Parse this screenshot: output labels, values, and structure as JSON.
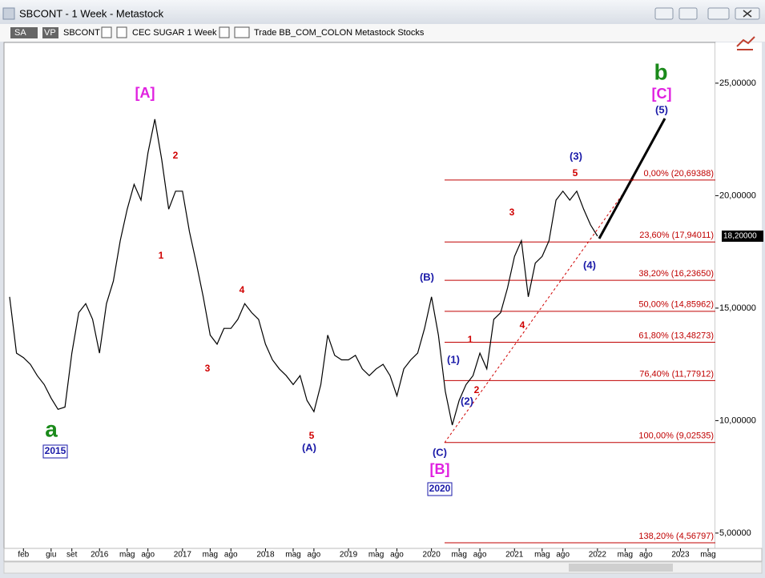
{
  "window": {
    "title": "SBCONT - 1 Week - Metastock",
    "toolbar": [
      "SA",
      "VP",
      "SBCONT",
      "CEC SUGAR  1 Week",
      "Trade  BB_COM_COLON  Metastock  Stocks"
    ]
  },
  "chart_data": {
    "type": "line",
    "color": "#000000",
    "x": [
      "2014-12",
      "2015-01",
      "2015-02",
      "2015-03",
      "2015-04",
      "2015-05",
      "2015-06",
      "2015-07",
      "2015-08",
      "2015-09",
      "2015-10",
      "2015-11",
      "2015-12",
      "2016-01",
      "2016-02",
      "2016-03",
      "2016-04",
      "2016-05",
      "2016-06",
      "2016-07",
      "2016-08",
      "2016-09",
      "2016-10",
      "2016-11",
      "2016-12",
      "2017-01",
      "2017-02",
      "2017-03",
      "2017-04",
      "2017-05",
      "2017-06",
      "2017-07",
      "2017-08",
      "2017-09",
      "2017-10",
      "2017-11",
      "2017-12",
      "2018-01",
      "2018-02",
      "2018-03",
      "2018-04",
      "2018-05",
      "2018-06",
      "2018-07",
      "2018-08",
      "2018-09",
      "2018-10",
      "2018-11",
      "2018-12",
      "2019-01",
      "2019-02",
      "2019-03",
      "2019-04",
      "2019-05",
      "2019-06",
      "2019-07",
      "2019-08",
      "2019-09",
      "2019-10",
      "2019-11",
      "2019-12",
      "2020-01",
      "2020-02",
      "2020-03",
      "2020-04",
      "2020-05",
      "2020-06",
      "2020-07",
      "2020-08",
      "2020-09",
      "2020-10",
      "2020-11",
      "2020-12",
      "2021-01",
      "2021-02",
      "2021-03",
      "2021-04",
      "2021-05",
      "2021-06",
      "2021-07",
      "2021-08",
      "2021-09",
      "2021-10",
      "2021-11",
      "2021-12",
      "2022-01"
    ],
    "values": [
      15.5,
      13.0,
      12.8,
      12.5,
      12.0,
      11.6,
      11.0,
      10.5,
      10.6,
      13.0,
      14.8,
      15.2,
      14.5,
      13.0,
      15.2,
      16.2,
      18.0,
      19.4,
      20.5,
      19.8,
      21.9,
      23.4,
      21.6,
      19.4,
      20.2,
      20.2,
      18.4,
      17.0,
      15.5,
      13.8,
      13.4,
      14.1,
      14.1,
      14.5,
      15.2,
      14.8,
      14.5,
      13.4,
      12.7,
      12.3,
      12.0,
      11.6,
      12.0,
      10.9,
      10.4,
      11.6,
      13.8,
      12.9,
      12.7,
      12.7,
      12.9,
      12.3,
      12.0,
      12.3,
      12.5,
      12.0,
      11.1,
      12.3,
      12.7,
      13.0,
      14.1,
      15.5,
      13.8,
      11.3,
      9.8,
      10.9,
      11.6,
      12.0,
      13.0,
      12.3,
      14.5,
      14.8,
      15.9,
      17.3,
      18.0,
      15.5,
      17.0,
      17.3,
      18.0,
      19.8,
      20.2,
      19.8,
      20.2,
      19.4,
      18.7,
      18.2
    ],
    "xlim": [
      "2014-12",
      "2023-05"
    ],
    "xticks": [
      {
        "value": "2015-02",
        "label": "feb"
      },
      {
        "value": "2015-06",
        "label": "giu"
      },
      {
        "value": "2015-09",
        "label": "set"
      },
      {
        "value": "2016-01",
        "label": "2016"
      },
      {
        "value": "2016-05",
        "label": "mag"
      },
      {
        "value": "2016-08",
        "label": "ago"
      },
      {
        "value": "2017-01",
        "label": "2017"
      },
      {
        "value": "2017-05",
        "label": "mag"
      },
      {
        "value": "2017-08",
        "label": "ago"
      },
      {
        "value": "2018-01",
        "label": "2018"
      },
      {
        "value": "2018-05",
        "label": "mag"
      },
      {
        "value": "2018-08",
        "label": "ago"
      },
      {
        "value": "2019-01",
        "label": "2019"
      },
      {
        "value": "2019-05",
        "label": "mag"
      },
      {
        "value": "2019-08",
        "label": "ago"
      },
      {
        "value": "2020-01",
        "label": "2020"
      },
      {
        "value": "2020-05",
        "label": "mag"
      },
      {
        "value": "2020-08",
        "label": "ago"
      },
      {
        "value": "2021-01",
        "label": "2021"
      },
      {
        "value": "2021-05",
        "label": "mag"
      },
      {
        "value": "2021-08",
        "label": "ago"
      },
      {
        "value": "2022-01",
        "label": "2022"
      },
      {
        "value": "2022-05",
        "label": "mag"
      },
      {
        "value": "2022-08",
        "label": "ago"
      },
      {
        "value": "2023-01",
        "label": "2023"
      },
      {
        "value": "2023-05",
        "label": "mag"
      }
    ],
    "ylim": [
      4.32,
      26.74
    ],
    "yticks": [
      {
        "value": 5,
        "label": "5,00000"
      },
      {
        "value": 10,
        "label": "10,00000"
      },
      {
        "value": 15,
        "label": "15,00000"
      },
      {
        "value": 20,
        "label": "20,00000"
      },
      {
        "value": 25,
        "label": "25,00000"
      }
    ],
    "last_price": {
      "value": 18.2,
      "label": "18,20000"
    },
    "fib_levels": [
      {
        "value": 20.69388,
        "label": "0,00% (20,69388)"
      },
      {
        "value": 17.94011,
        "label": "23,60% (17,94011)"
      },
      {
        "value": 16.2365,
        "label": "38,20% (16,23650)"
      },
      {
        "value": 14.85962,
        "label": "50,00% (14,85962)"
      },
      {
        "value": 13.48273,
        "label": "61,80% (13,48273)"
      },
      {
        "value": 11.77912,
        "label": "76,40% (11,77912)"
      },
      {
        "value": 9.02535,
        "label": "100,00% (9,02535)"
      },
      {
        "value": 4.56797,
        "label": "138,20% (4,56797)"
      }
    ],
    "annotations": [
      "[A]",
      "2",
      "1",
      "3",
      "4",
      "5",
      "(A)",
      "a",
      "2015",
      "(B)",
      "(C)",
      "[B]",
      "2020",
      "(1)",
      "(2)",
      "1",
      "2",
      "3",
      "4",
      "5",
      "(3)",
      "(4)",
      "b",
      "[C]",
      "(5)"
    ]
  }
}
